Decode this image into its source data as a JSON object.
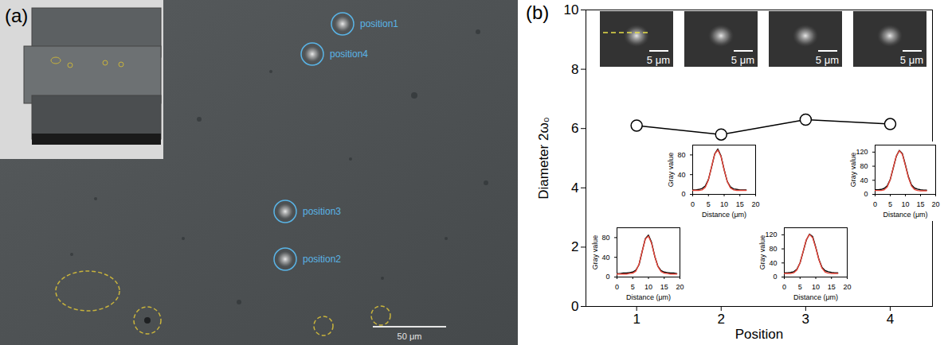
{
  "figure": {
    "panel_a": {
      "letter": "(a)",
      "positions": [
        "position1",
        "position2",
        "position3",
        "position4"
      ],
      "scale_bar": "50 μm"
    },
    "panel_b": {
      "letter": "(b)",
      "image_scale_labels": [
        "5 μm",
        "5 μm",
        "5 μm",
        "5 μm"
      ]
    }
  },
  "chart_data": [
    {
      "type": "line",
      "xlabel": "Position",
      "ylabel": "Diameter 2ω₀",
      "x": [
        1,
        2,
        3,
        4
      ],
      "values": [
        6.1,
        5.8,
        6.3,
        6.15
      ],
      "xlim": [
        0.4,
        4.5
      ],
      "xticks": [
        1,
        2,
        3,
        4
      ],
      "ylim": [
        0,
        10
      ],
      "yticks": [
        0,
        2,
        4,
        6,
        8,
        10
      ],
      "color": "#000000",
      "marker": "circle",
      "line_style": "solid"
    },
    {
      "type": "line",
      "xlabel": "Distance (μm)",
      "ylabel": "Gray value",
      "x": [
        0,
        1,
        2,
        3,
        4,
        5,
        6,
        7,
        8,
        9,
        10,
        11,
        12,
        13,
        14,
        15,
        16,
        17,
        18,
        19
      ],
      "xlim": [
        0,
        20
      ],
      "xticks": [
        0,
        5,
        10,
        15,
        20
      ],
      "ylim": [
        0,
        100
      ],
      "yticks": [
        0,
        40,
        80
      ],
      "series": [
        {
          "color": "#000000",
          "line_style": "solid",
          "values": [
            7,
            7,
            8,
            8,
            9,
            10,
            14,
            25,
            52,
            78,
            85,
            70,
            42,
            22,
            13,
            10,
            9,
            8,
            8,
            7
          ]
        },
        {
          "color": "#e8463a",
          "line_style": "solid",
          "values": [
            6,
            6,
            6,
            6,
            7,
            8,
            12,
            26,
            52,
            77,
            83,
            68,
            42,
            21,
            11,
            8,
            7,
            6,
            6,
            6
          ]
        }
      ]
    },
    {
      "type": "line",
      "xlabel": "Distance (μm)",
      "ylabel": "Gray value",
      "x": [
        0,
        1,
        2,
        3,
        4,
        5,
        6,
        7,
        8,
        9,
        10,
        11,
        12,
        13,
        14,
        15,
        16,
        17
      ],
      "xlim": [
        0,
        20
      ],
      "xticks": [
        0,
        5,
        10,
        15,
        20
      ],
      "ylim": [
        0,
        100
      ],
      "yticks": [
        0,
        40,
        80
      ],
      "series": [
        {
          "color": "#000000",
          "line_style": "solid",
          "values": [
            9,
            9,
            10,
            12,
            17,
            30,
            55,
            82,
            92,
            78,
            50,
            26,
            15,
            11,
            10,
            9,
            9,
            9
          ]
        },
        {
          "color": "#e8463a",
          "line_style": "solid",
          "values": [
            8,
            8,
            8,
            9,
            14,
            29,
            56,
            82,
            90,
            77,
            50,
            26,
            13,
            9,
            8,
            8,
            8,
            8
          ]
        }
      ]
    },
    {
      "type": "line",
      "xlabel": "Distance (μm)",
      "ylabel": "Gray value",
      "x": [
        0,
        1,
        2,
        3,
        4,
        5,
        6,
        7,
        8,
        9,
        10,
        11,
        12,
        13,
        14,
        15,
        16,
        17
      ],
      "xlim": [
        0,
        20
      ],
      "xticks": [
        0,
        5,
        10,
        15,
        20
      ],
      "ylim": [
        0,
        140
      ],
      "yticks": [
        0,
        40,
        80,
        120
      ],
      "series": [
        {
          "color": "#000000",
          "line_style": "solid",
          "values": [
            12,
            12,
            13,
            15,
            22,
            40,
            72,
            105,
            122,
            115,
            85,
            50,
            27,
            18,
            15,
            13,
            12,
            12
          ]
        },
        {
          "color": "#e8463a",
          "line_style": "solid",
          "values": [
            10,
            10,
            10,
            12,
            20,
            40,
            73,
            106,
            121,
            112,
            83,
            49,
            25,
            14,
            11,
            10,
            10,
            10
          ]
        }
      ]
    },
    {
      "type": "line",
      "xlabel": "Distance (μm)",
      "ylabel": "Gray value",
      "x": [
        0,
        1,
        2,
        3,
        4,
        5,
        6,
        7,
        8,
        9,
        10,
        11,
        12,
        13,
        14,
        15,
        16,
        17
      ],
      "xlim": [
        0,
        20
      ],
      "xticks": [
        0,
        5,
        10,
        15,
        20
      ],
      "ylim": [
        0,
        140
      ],
      "yticks": [
        0,
        40,
        80,
        120
      ],
      "series": [
        {
          "color": "#000000",
          "line_style": "solid",
          "values": [
            13,
            13,
            14,
            17,
            24,
            42,
            75,
            108,
            125,
            116,
            84,
            50,
            27,
            18,
            15,
            13,
            12,
            12
          ]
        },
        {
          "color": "#e8463a",
          "line_style": "solid",
          "values": [
            11,
            11,
            11,
            13,
            21,
            42,
            76,
            109,
            124,
            114,
            82,
            48,
            24,
            14,
            11,
            10,
            10,
            10
          ]
        }
      ]
    }
  ]
}
